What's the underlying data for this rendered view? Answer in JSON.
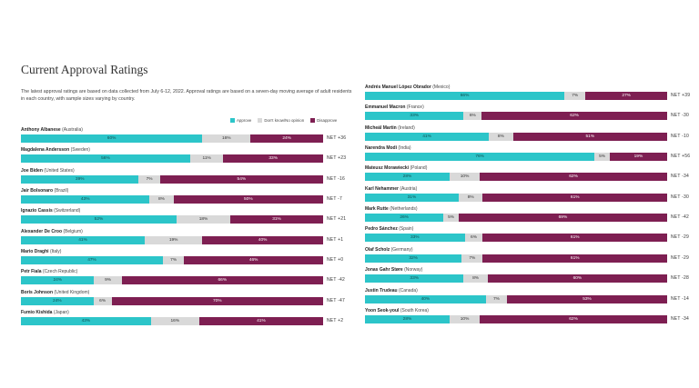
{
  "page": {
    "title": "Current Approval Ratings",
    "description": "The latest approval ratings are based on data collected from July 6-12, 2022. Approval ratings are based on a seven-day moving average of adult residents in each country, with sample sizes varying by country."
  },
  "legend": {
    "approve": "Approve",
    "no_opinion": "Don't know/No opinion",
    "disapprove": "Disapprove"
  },
  "colors": {
    "approve": "#2cc5c9",
    "no_opinion": "#d9d9d9",
    "disapprove": "#7e1f52"
  },
  "chart_data": {
    "type": "bar",
    "stacked": true,
    "orientation": "horizontal",
    "title": "Current Approval Ratings",
    "series_names": [
      "Approve",
      "Don't know/No opinion",
      "Disapprove"
    ],
    "left_column": [
      {
        "name": "Anthony Albanese",
        "country": "(Australia)",
        "approve": 60,
        "no_opinion": 16,
        "disapprove": 24,
        "net": "NET +36"
      },
      {
        "name": "Magdalena Andersson",
        "country": "(Sweden)",
        "approve": 56,
        "no_opinion": 11,
        "disapprove": 33,
        "net": "NET +23"
      },
      {
        "name": "Joe Biden",
        "country": "(United States)",
        "approve": 39,
        "no_opinion": 7,
        "disapprove": 54,
        "net": "NET -16"
      },
      {
        "name": "Jair Bolsonaro",
        "country": "(Brazil)",
        "approve": 43,
        "no_opinion": 8,
        "disapprove": 50,
        "net": "NET -7"
      },
      {
        "name": "Ignazio Cassis",
        "country": "(Switzerland)",
        "approve": 52,
        "no_opinion": 18,
        "disapprove": 31,
        "net": "NET +21"
      },
      {
        "name": "Alexander De Croo",
        "country": "(Belgium)",
        "approve": 41,
        "no_opinion": 19,
        "disapprove": 40,
        "net": "NET +1"
      },
      {
        "name": "Mario Draghi",
        "country": "(Italy)",
        "approve": 47,
        "no_opinion": 7,
        "disapprove": 46,
        "net": "NET +0"
      },
      {
        "name": "Petr Fiala",
        "country": "(Czech Republic)",
        "approve": 24,
        "no_opinion": 9,
        "disapprove": 66,
        "net": "NET -42"
      },
      {
        "name": "Boris Johnson",
        "country": "(United Kingdom)",
        "approve": 24,
        "no_opinion": 6,
        "disapprove": 70,
        "net": "NET -47"
      },
      {
        "name": "Fumio Kishida",
        "country": "(Japan)",
        "approve": 43,
        "no_opinion": 16,
        "disapprove": 41,
        "net": "NET +2"
      }
    ],
    "right_column": [
      {
        "name": "Andrés Manuel López Obrador",
        "country": "(Mexico)",
        "approve": 66,
        "no_opinion": 7,
        "disapprove": 27,
        "net": "NET +39"
      },
      {
        "name": "Emmanuel Macron",
        "country": "(France)",
        "approve": 33,
        "no_opinion": 6,
        "disapprove": 62,
        "net": "NET -30"
      },
      {
        "name": "Micheál Martin",
        "country": "(Ireland)",
        "approve": 41,
        "no_opinion": 8,
        "disapprove": 51,
        "net": "NET -10"
      },
      {
        "name": "Narendra Modi",
        "country": "(India)",
        "approve": 76,
        "no_opinion": 5,
        "disapprove": 19,
        "net": "NET +56"
      },
      {
        "name": "Mateusz Morawiecki",
        "country": "(Poland)",
        "approve": 28,
        "no_opinion": 10,
        "disapprove": 62,
        "net": "NET -34"
      },
      {
        "name": "Karl Nehammer",
        "country": "(Austria)",
        "approve": 31,
        "no_opinion": 8,
        "disapprove": 61,
        "net": "NET -30"
      },
      {
        "name": "Mark Rutte",
        "country": "(Netherlands)",
        "approve": 26,
        "no_opinion": 5,
        "disapprove": 69,
        "net": "NET -42"
      },
      {
        "name": "Pedro Sánchez",
        "country": "(Spain)",
        "approve": 33,
        "no_opinion": 6,
        "disapprove": 61,
        "net": "NET -29"
      },
      {
        "name": "Olaf Scholz",
        "country": "(Germany)",
        "approve": 32,
        "no_opinion": 7,
        "disapprove": 61,
        "net": "NET -29"
      },
      {
        "name": "Jonas Gahr Støre",
        "country": "(Norway)",
        "approve": 33,
        "no_opinion": 8,
        "disapprove": 60,
        "net": "NET -28"
      },
      {
        "name": "Justin Trudeau",
        "country": "(Canada)",
        "approve": 40,
        "no_opinion": 7,
        "disapprove": 53,
        "net": "NET -14"
      },
      {
        "name": "Yoon Seok-youl",
        "country": "(South Korea)",
        "approve": 28,
        "no_opinion": 10,
        "disapprove": 62,
        "net": "NET -34"
      }
    ]
  }
}
